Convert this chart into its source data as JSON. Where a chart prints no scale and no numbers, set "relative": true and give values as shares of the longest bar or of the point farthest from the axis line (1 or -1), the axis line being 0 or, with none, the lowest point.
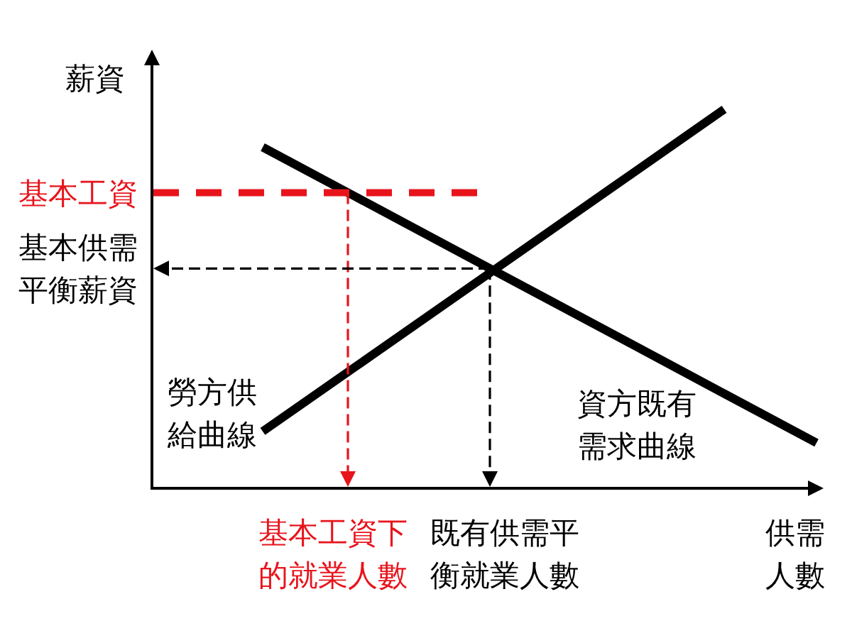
{
  "chart_data": {
    "type": "line",
    "relative": true,
    "ylabel": "薪資",
    "xlabel": "供需人數",
    "categories": [
      null,
      null,
      null,
      null,
      null,
      null,
      null
    ],
    "series": [
      {
        "name": "勞方供給曲線",
        "color": "#000000",
        "values": [
          0.15,
          0.32,
          0.49,
          0.66,
          0.83,
          1,
          null
        ]
      },
      {
        "name": "資方既有需求曲線",
        "color": "#000000",
        "values": [
          0.9,
          0.77,
          0.64,
          0.51,
          0.38,
          0.25,
          0.12
        ]
      }
    ],
    "ref_lines": [
      {
        "axis": "y",
        "value": 0.78,
        "label": "基本工資",
        "color": "#e8141c",
        "line_style": "dashed"
      },
      {
        "axis": "y",
        "value": 0.58,
        "label": "基本供需平衡薪資",
        "color": "#000000",
        "line_style": "dashed"
      }
    ],
    "annotations": [
      "基本工資下的就業人數",
      "既有供需平衡就業人數"
    ]
  }
}
